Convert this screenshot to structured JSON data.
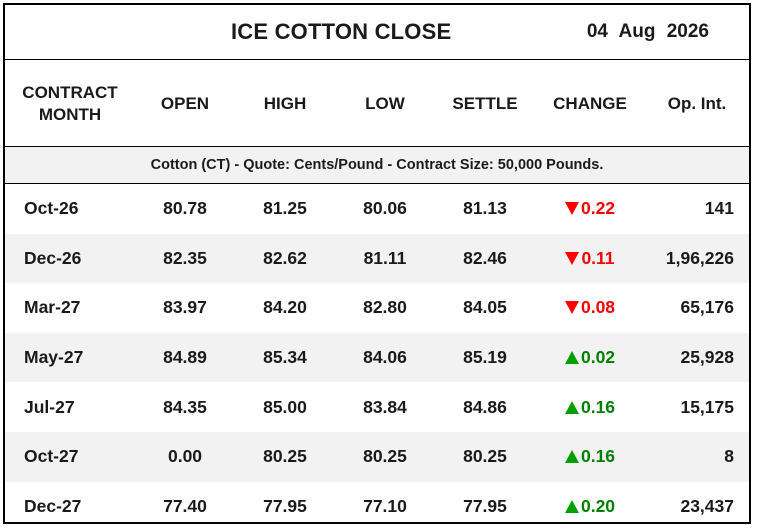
{
  "title": "ICE COTTON CLOSE",
  "date": "04  Aug 2026",
  "headers": {
    "month_line1": "CONTRACT",
    "month_line2": "MONTH",
    "open": "OPEN",
    "high": "HIGH",
    "low": "LOW",
    "settle": "SETTLE",
    "change": "CHANGE",
    "oi": "Op. Int."
  },
  "info": "Cotton (CT) - Quote: Cents/Pound - Contract Size: 50,000 Pounds.",
  "colors": {
    "down": "#ff0000",
    "up": "#008000",
    "alt_row": "#f2f2f2"
  },
  "rows": [
    {
      "month": "Oct-26",
      "open": "80.78",
      "high": "81.25",
      "low": "80.06",
      "settle": "81.13",
      "change": "0.22",
      "direction": "down",
      "oi": "141"
    },
    {
      "month": "Dec-26",
      "open": "82.35",
      "high": "82.62",
      "low": "81.11",
      "settle": "82.46",
      "change": "0.11",
      "direction": "down",
      "oi": "1,96,226"
    },
    {
      "month": "Mar-27",
      "open": "83.97",
      "high": "84.20",
      "low": "82.80",
      "settle": "84.05",
      "change": "0.08",
      "direction": "down",
      "oi": "65,176"
    },
    {
      "month": "May-27",
      "open": "84.89",
      "high": "85.34",
      "low": "84.06",
      "settle": "85.19",
      "change": "0.02",
      "direction": "up",
      "oi": "25,928"
    },
    {
      "month": "Jul-27",
      "open": "84.35",
      "high": "85.00",
      "low": "83.84",
      "settle": "84.86",
      "change": "0.16",
      "direction": "up",
      "oi": "15,175"
    },
    {
      "month": "Oct-27",
      "open": "0.00",
      "high": "80.25",
      "low": "80.25",
      "settle": "80.25",
      "change": "0.16",
      "direction": "up",
      "oi": "8"
    },
    {
      "month": "Dec-27",
      "open": "77.40",
      "high": "77.95",
      "low": "77.10",
      "settle": "77.95",
      "change": "0.20",
      "direction": "up",
      "oi": "23,437"
    }
  ]
}
